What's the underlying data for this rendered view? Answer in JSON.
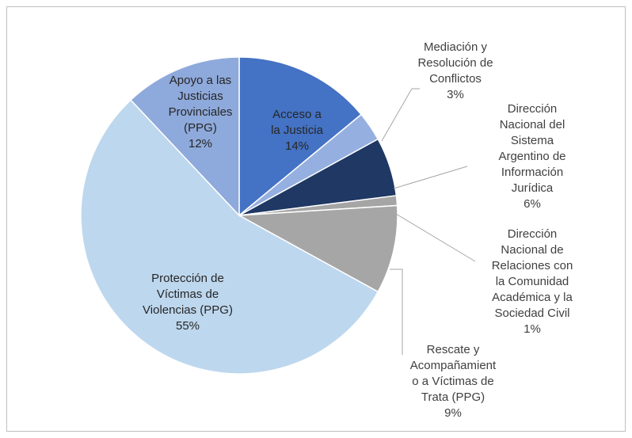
{
  "chart_data": {
    "type": "pie",
    "categories": [
      "Acceso a\nla Justicia",
      "Mediación y\nResolución de\nConflictos",
      "Dirección\nNacional del\nSistema\nArgentino de\nInformación\nJurídica",
      "Dirección\nNacional de\nRelaciones con\nla Comunidad\nAcadémica y la\nSociedad Civil",
      "Rescate y\nAcompañamient\no a Víctimas de\nTrata (PPG)",
      "Protección de\nVíctimas de\nViolencias (PPG)",
      "Apoyo a las\nJusticias\nProvinciales\n(PPG)"
    ],
    "values": [
      14,
      3,
      6,
      1,
      9,
      55,
      12
    ],
    "value_labels": [
      "14%",
      "3%",
      "6%",
      "1%",
      "9%",
      "55%",
      "12%"
    ],
    "colors": [
      "#4472c4",
      "#95b0e0",
      "#1f3864",
      "#a5a5a5",
      "#a6a6a6",
      "#bdd7ee",
      "#8ea9db"
    ]
  }
}
